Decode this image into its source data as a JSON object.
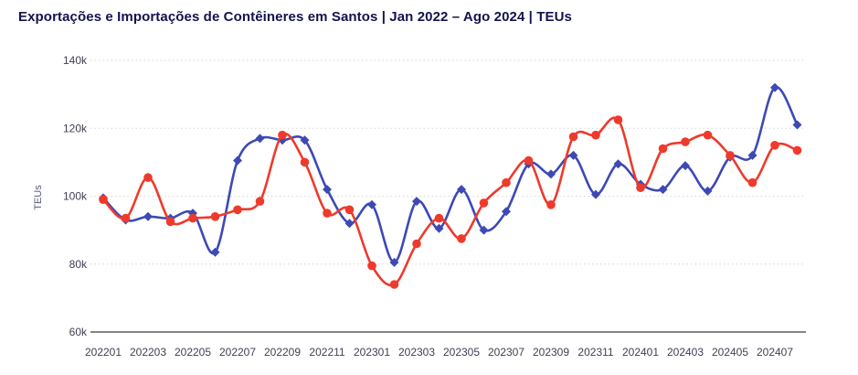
{
  "header": {
    "title": "Exportações e Importações de Contêineres em Santos | Jan 2022 – Ago 2024 | TEUs"
  },
  "colors": {
    "title": "#13134e",
    "axis_text": "#3f3f55",
    "y_axis_title": "#5a5a78",
    "grid": "#d6d6d6",
    "axis_line": "#3c3c3c",
    "export_blue": "#3d49b5",
    "import_red": "#ee3a2c"
  },
  "chart_data": {
    "type": "line",
    "title": "Exportações e Importações de Contêineres em Santos | Jan 2022 – Ago 2024 | TEUs",
    "xlabel": "",
    "ylabel": "TEUs",
    "ylim": [
      60000,
      140000
    ],
    "grid": "horizontal-dotted",
    "legend": "none",
    "line_style": "smooth-spline",
    "y_ticks": [
      {
        "value": 60000,
        "label": "60k"
      },
      {
        "value": 80000,
        "label": "80k"
      },
      {
        "value": 100000,
        "label": "100k"
      },
      {
        "value": 120000,
        "label": "120k"
      },
      {
        "value": 140000,
        "label": "140k"
      }
    ],
    "x": [
      "202201",
      "202202",
      "202203",
      "202204",
      "202205",
      "202206",
      "202207",
      "202208",
      "202209",
      "202210",
      "202211",
      "202212",
      "202301",
      "202302",
      "202303",
      "202304",
      "202305",
      "202306",
      "202307",
      "202308",
      "202309",
      "202310",
      "202311",
      "202312",
      "202401",
      "202402",
      "202403",
      "202404",
      "202405",
      "202406",
      "202407",
      "202408"
    ],
    "x_tick_labels": [
      "202201",
      "202203",
      "202205",
      "202207",
      "202209",
      "202211",
      "202301",
      "202303",
      "202305",
      "202307",
      "202309",
      "202311",
      "202401",
      "202403",
      "202405",
      "202407"
    ],
    "series": [
      {
        "name": "Exportações",
        "color": "#3d49b5",
        "marker": "diamond",
        "values": [
          99500,
          93000,
          94000,
          93500,
          95000,
          83500,
          110500,
          117000,
          116500,
          116500,
          102000,
          92000,
          97500,
          80500,
          98500,
          90500,
          102000,
          90000,
          95500,
          109500,
          106500,
          112000,
          100500,
          109500,
          103500,
          102000,
          109000,
          101500,
          111500,
          112000,
          132000,
          121000
        ]
      },
      {
        "name": "Importações",
        "color": "#ee3a2c",
        "marker": "circle",
        "values": [
          99000,
          93500,
          105500,
          92500,
          93500,
          94000,
          96000,
          98500,
          118000,
          110000,
          95000,
          96000,
          79500,
          74000,
          86000,
          93500,
          87500,
          98000,
          104000,
          110500,
          97500,
          117500,
          118000,
          122500,
          102500,
          114000,
          116000,
          118000,
          112000,
          104000,
          115000,
          113500
        ]
      }
    ]
  }
}
